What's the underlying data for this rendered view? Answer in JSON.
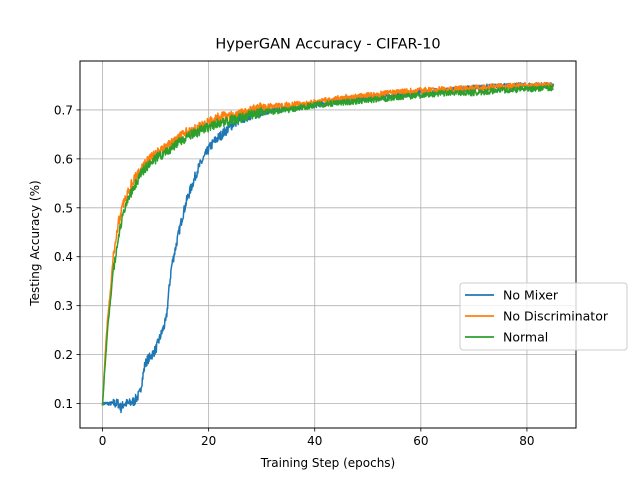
{
  "chart_data": {
    "type": "line",
    "title": "HyperGAN Accuracy - CIFAR-10",
    "xlabel": "Training Step (epochs)",
    "ylabel": "Testing Accuracy (%)",
    "xlim": [
      -4.25,
      89.25
    ],
    "ylim": [
      0.05,
      0.8
    ],
    "xticks": [
      0,
      20,
      40,
      60,
      80
    ],
    "yticks": [
      0.1,
      0.2,
      0.3,
      0.4,
      0.5,
      0.6,
      0.7
    ],
    "ytick_labels": [
      "0.1",
      "0.2",
      "0.3",
      "0.4",
      "0.5",
      "0.6",
      "0.7"
    ],
    "grid": true,
    "legend_position": "lower-right (extending outside plot)",
    "series": [
      {
        "name": "No Mixer",
        "color": "#1f77b4",
        "x": [
          0,
          1,
          2,
          3,
          3.5,
          4,
          5,
          6,
          7,
          7.5,
          8,
          8.5,
          9,
          10,
          11,
          12,
          12.5,
          13,
          14,
          15,
          16,
          17,
          18,
          19,
          20,
          21,
          22,
          23,
          24,
          25,
          26,
          28,
          30,
          33,
          36,
          40,
          45,
          50,
          55,
          60,
          65,
          70,
          75,
          80,
          85
        ],
        "y": [
          0.1,
          0.1,
          0.1,
          0.1,
          0.09,
          0.1,
          0.1,
          0.105,
          0.12,
          0.15,
          0.18,
          0.19,
          0.195,
          0.21,
          0.24,
          0.27,
          0.33,
          0.38,
          0.43,
          0.48,
          0.52,
          0.55,
          0.58,
          0.6,
          0.62,
          0.635,
          0.645,
          0.655,
          0.665,
          0.675,
          0.68,
          0.69,
          0.695,
          0.7,
          0.705,
          0.71,
          0.72,
          0.725,
          0.73,
          0.735,
          0.74,
          0.745,
          0.748,
          0.75,
          0.75
        ]
      },
      {
        "name": "No Discriminator",
        "color": "#ff7f0e",
        "x": [
          0,
          0.5,
          1,
          1.5,
          2,
          3,
          4,
          5,
          6,
          7,
          8,
          10,
          12,
          14,
          16,
          18,
          20,
          22,
          25,
          28,
          30,
          35,
          40,
          45,
          50,
          55,
          60,
          65,
          70,
          75,
          80,
          85
        ],
        "y": [
          0.1,
          0.2,
          0.28,
          0.33,
          0.4,
          0.47,
          0.51,
          0.54,
          0.56,
          0.575,
          0.59,
          0.61,
          0.625,
          0.64,
          0.655,
          0.665,
          0.675,
          0.685,
          0.69,
          0.7,
          0.705,
          0.71,
          0.715,
          0.725,
          0.73,
          0.735,
          0.74,
          0.742,
          0.745,
          0.748,
          0.75,
          0.75
        ]
      },
      {
        "name": "Normal",
        "color": "#2ca02c",
        "x": [
          0,
          0.5,
          1,
          1.5,
          2,
          3,
          4,
          5,
          6,
          7,
          8,
          10,
          12,
          14,
          16,
          18,
          20,
          22,
          25,
          28,
          30,
          35,
          40,
          45,
          50,
          55,
          60,
          65,
          70,
          75,
          80,
          85
        ],
        "y": [
          0.1,
          0.18,
          0.26,
          0.31,
          0.37,
          0.44,
          0.49,
          0.52,
          0.545,
          0.565,
          0.58,
          0.6,
          0.615,
          0.63,
          0.645,
          0.655,
          0.665,
          0.675,
          0.68,
          0.69,
          0.695,
          0.7,
          0.71,
          0.715,
          0.72,
          0.725,
          0.73,
          0.735,
          0.735,
          0.74,
          0.742,
          0.745
        ]
      }
    ]
  }
}
